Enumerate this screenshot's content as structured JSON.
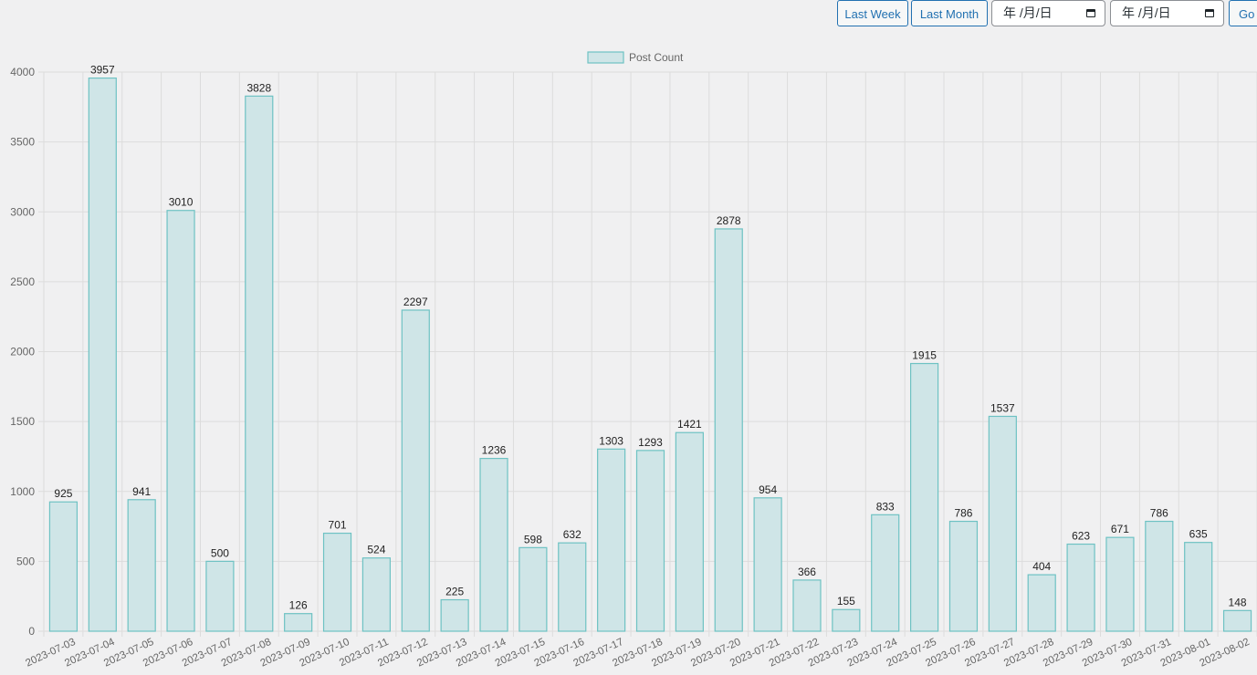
{
  "toolbar": {
    "last_week_label": "Last Week",
    "last_month_label": "Last Month",
    "start_date_placeholder": "年 /月/日",
    "end_date_placeholder": "年 /月/日",
    "go_label": "Go"
  },
  "colors": {
    "bar_fill": "#cfe5e7",
    "bar_stroke": "#6ec2c3",
    "grid": "#dcdcdc",
    "axis_text": "#666666",
    "label_text": "#222222",
    "button_accent": "#2271b1"
  },
  "icons": {
    "date_picker": "calendar-icon"
  },
  "chart_data": {
    "type": "bar",
    "title": "",
    "xlabel": "",
    "ylabel": "",
    "legend_position": "top-center",
    "grid": true,
    "ylim": [
      0,
      4000
    ],
    "yticks": [
      0,
      500,
      1000,
      1500,
      2000,
      2500,
      3000,
      3500,
      4000
    ],
    "categories": [
      "2023-07-03",
      "2023-07-04",
      "2023-07-05",
      "2023-07-06",
      "2023-07-07",
      "2023-07-08",
      "2023-07-09",
      "2023-07-10",
      "2023-07-11",
      "2023-07-12",
      "2023-07-13",
      "2023-07-14",
      "2023-07-15",
      "2023-07-16",
      "2023-07-17",
      "2023-07-18",
      "2023-07-19",
      "2023-07-20",
      "2023-07-21",
      "2023-07-22",
      "2023-07-23",
      "2023-07-24",
      "2023-07-25",
      "2023-07-26",
      "2023-07-27",
      "2023-07-28",
      "2023-07-29",
      "2023-07-30",
      "2023-07-31",
      "2023-08-01",
      "2023-08-02"
    ],
    "series": [
      {
        "name": "Post Count",
        "values": [
          925,
          3957,
          941,
          3010,
          500,
          3828,
          126,
          701,
          524,
          2297,
          225,
          1236,
          598,
          632,
          1303,
          1293,
          1421,
          2878,
          954,
          366,
          155,
          833,
          1915,
          786,
          1537,
          404,
          623,
          671,
          786,
          635,
          148
        ]
      }
    ]
  }
}
